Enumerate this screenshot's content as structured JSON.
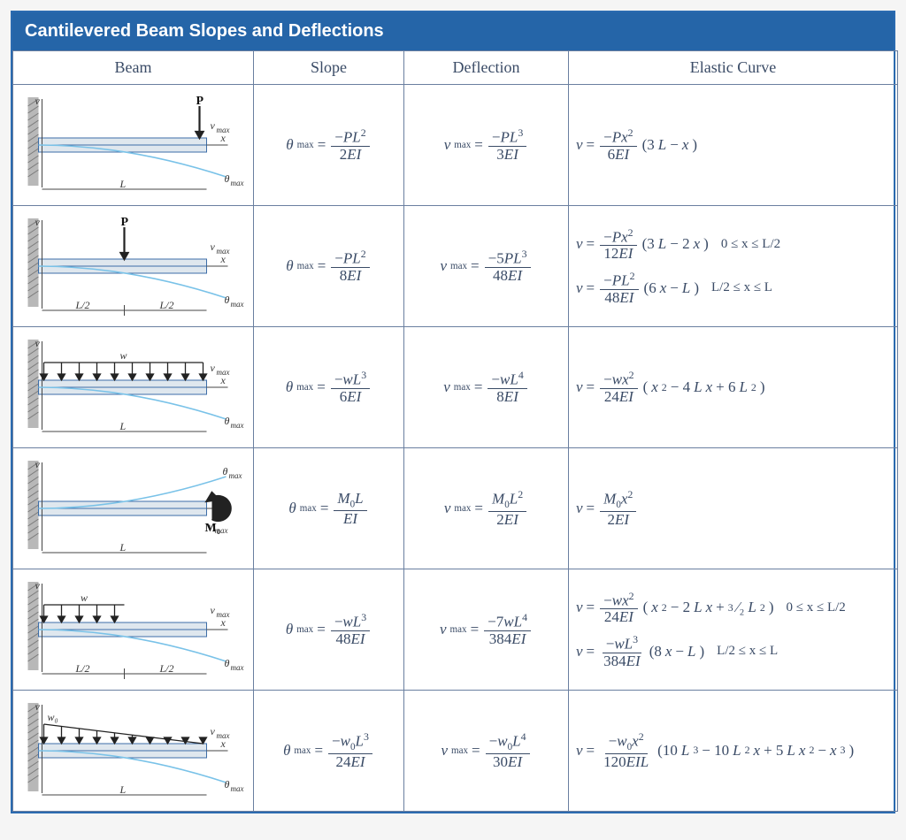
{
  "title": "Cantilevered Beam Slopes and Deflections",
  "columns": {
    "beam": "Beam",
    "slope": "Slope",
    "deflection": "Deflection",
    "curve": "Elastic Curve"
  },
  "colors": {
    "header_bg": "#2565a8",
    "border": "#2b6bb0",
    "cell_border": "#6a7fa0",
    "text": "#3a4b66",
    "beam_fill": "#dfe7ee",
    "beam_stroke": "#3e6ea8",
    "curve": "#79c2e8",
    "support": "#b8b8b8"
  },
  "rows": [
    {
      "diagram": "end_point",
      "slope": {
        "lhs": "θ_max",
        "num": "−PL²",
        "den": "2EI"
      },
      "deflection": {
        "lhs": "v_max",
        "num": "−PL³",
        "den": "3EI"
      },
      "curves": [
        {
          "lhs": "v",
          "num": "−Px²",
          "den": "6EI",
          "tail": "(3L − x)"
        }
      ]
    },
    {
      "diagram": "mid_point",
      "slope": {
        "lhs": "θ_max",
        "num": "−PL²",
        "den": "8EI"
      },
      "deflection": {
        "lhs": "v_max",
        "num": "−5PL³",
        "den": "48EI"
      },
      "curves": [
        {
          "lhs": "v",
          "num": "−Px²",
          "den": "12EI",
          "tail": "(3L − 2x)",
          "range": "0 ≤ x ≤ L/2"
        },
        {
          "lhs": "v",
          "num": "−PL²",
          "den": "48EI",
          "tail": "(6x − L)",
          "range": "L/2 ≤ x ≤ L"
        }
      ]
    },
    {
      "diagram": "udl_full",
      "slope": {
        "lhs": "θ_max",
        "num": "−wL³",
        "den": "6EI"
      },
      "deflection": {
        "lhs": "v_max",
        "num": "−wL⁴",
        "den": "8EI"
      },
      "curves": [
        {
          "lhs": "v",
          "num": "−wx²",
          "den": "24EI",
          "tail": "(x² − 4Lx + 6L²)"
        }
      ]
    },
    {
      "diagram": "end_moment",
      "slope": {
        "lhs": "θ_max",
        "num": "M₀L",
        "den": "EI"
      },
      "deflection": {
        "lhs": "v_max",
        "num": "M₀L²",
        "den": "2EI"
      },
      "curves": [
        {
          "lhs": "v",
          "num": "M₀x²",
          "den": "2EI"
        }
      ]
    },
    {
      "diagram": "udl_half",
      "slope": {
        "lhs": "θ_max",
        "num": "−wL³",
        "den": "48EI"
      },
      "deflection": {
        "lhs": "v_max",
        "num": "−7wL⁴",
        "den": "384EI"
      },
      "curves": [
        {
          "lhs": "v",
          "num": "−wx²",
          "den": "24EI",
          "tail": "(x² − 2Lx + ³⁄₂L²)",
          "range": "0 ≤ x ≤ L/2"
        },
        {
          "lhs": "v",
          "num": "−wL³",
          "den": "384EI",
          "tail": "(8x − L)",
          "range": "L/2 ≤ x ≤ L"
        }
      ]
    },
    {
      "diagram": "tri_load",
      "slope": {
        "lhs": "θ_max",
        "num": "−w₀L³",
        "den": "24EI"
      },
      "deflection": {
        "lhs": "v_max",
        "num": "−w₀L⁴",
        "den": "30EI"
      },
      "curves": [
        {
          "lhs": "v",
          "num": "−w₀x²",
          "den": "120EIL",
          "tail": "(10L³ − 10L²x + 5Lx² − x³)"
        }
      ]
    }
  ]
}
